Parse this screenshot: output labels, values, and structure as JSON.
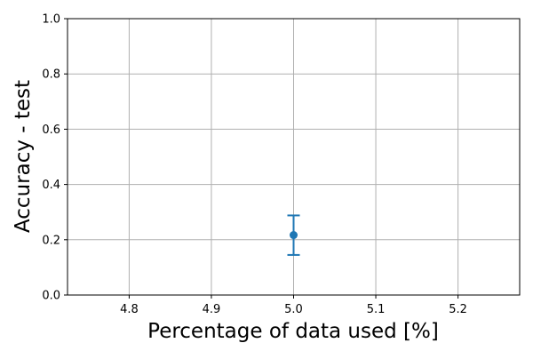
{
  "chart_data": {
    "type": "scatter",
    "title": "",
    "xlabel": "Percentage of data used [%]",
    "ylabel": "Accuracy - test",
    "xlim": [
      4.725,
      5.275
    ],
    "ylim": [
      0.0,
      1.0
    ],
    "x_ticks": [
      4.8,
      4.9,
      5.0,
      5.1,
      5.2
    ],
    "y_ticks": [
      0.0,
      0.2,
      0.4,
      0.6,
      0.8,
      1.0
    ],
    "x_tick_labels": [
      "4.8",
      "4.9",
      "5.0",
      "5.1",
      "5.2"
    ],
    "y_tick_labels": [
      "0.0",
      "0.2",
      "0.4",
      "0.6",
      "0.8",
      "1.0"
    ],
    "grid": true,
    "series": [
      {
        "color": "#1f77b4",
        "points": [
          {
            "x": 5.0,
            "y": 0.217,
            "yerr_low": 0.145,
            "yerr_high": 0.288
          }
        ]
      }
    ]
  }
}
